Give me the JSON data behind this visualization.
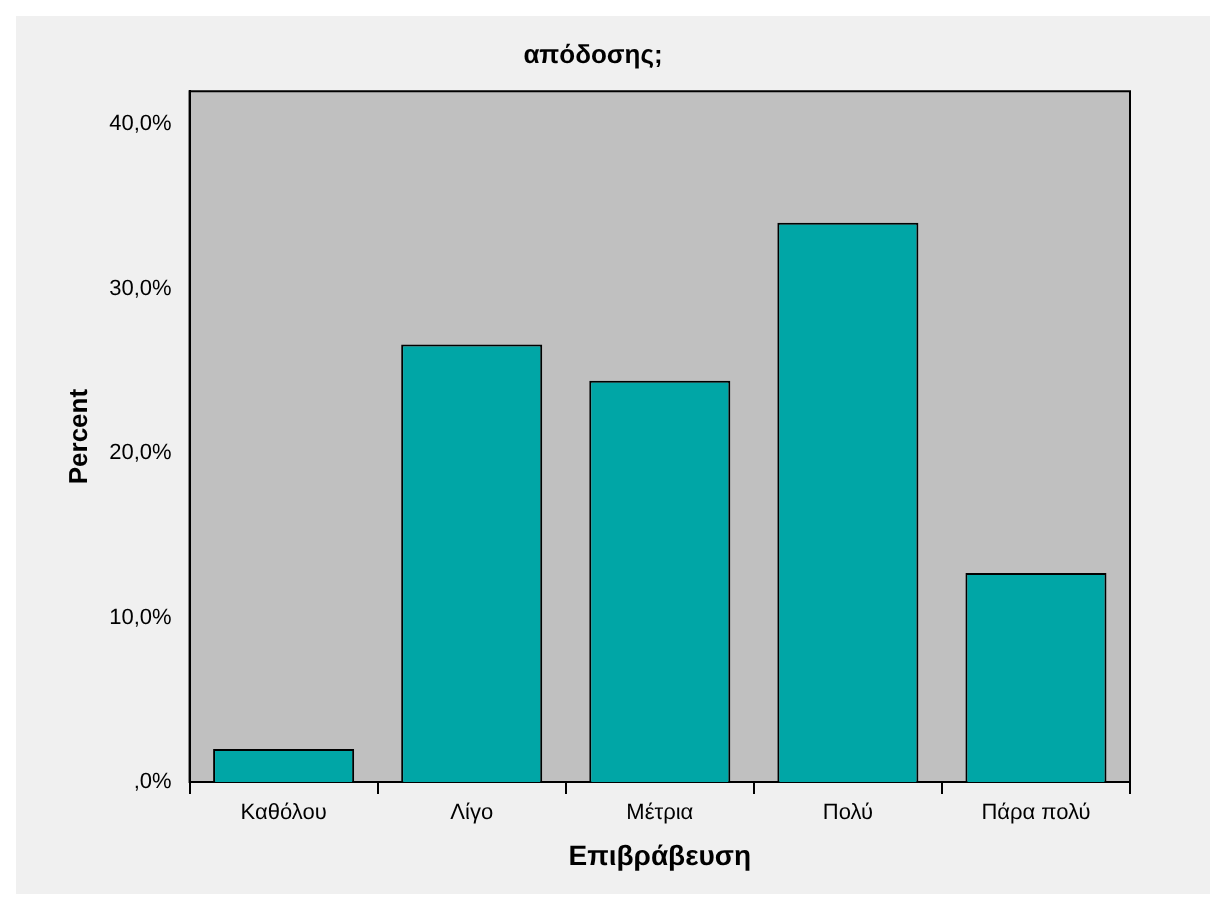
{
  "chart_data": {
    "type": "bar",
    "title": "απόδοσης;",
    "xlabel": "Επιβράβευση",
    "ylabel": "Percent",
    "categories": [
      "Καθόλου",
      "Λίγο",
      "Μέτρια",
      "Πολύ",
      "Πάρα πολύ"
    ],
    "values": [
      2.0,
      26.6,
      24.4,
      34.0,
      12.7
    ],
    "color": "#00a6a6",
    "ylim": [
      0,
      42
    ],
    "yticks": [
      {
        "value": 0,
        "label": ",0%"
      },
      {
        "value": 10,
        "label": "10,0%"
      },
      {
        "value": 20,
        "label": "20,0%"
      },
      {
        "value": 30,
        "label": "30,0%"
      },
      {
        "value": 40,
        "label": "40,0%"
      }
    ],
    "grid": false,
    "legend": false
  }
}
